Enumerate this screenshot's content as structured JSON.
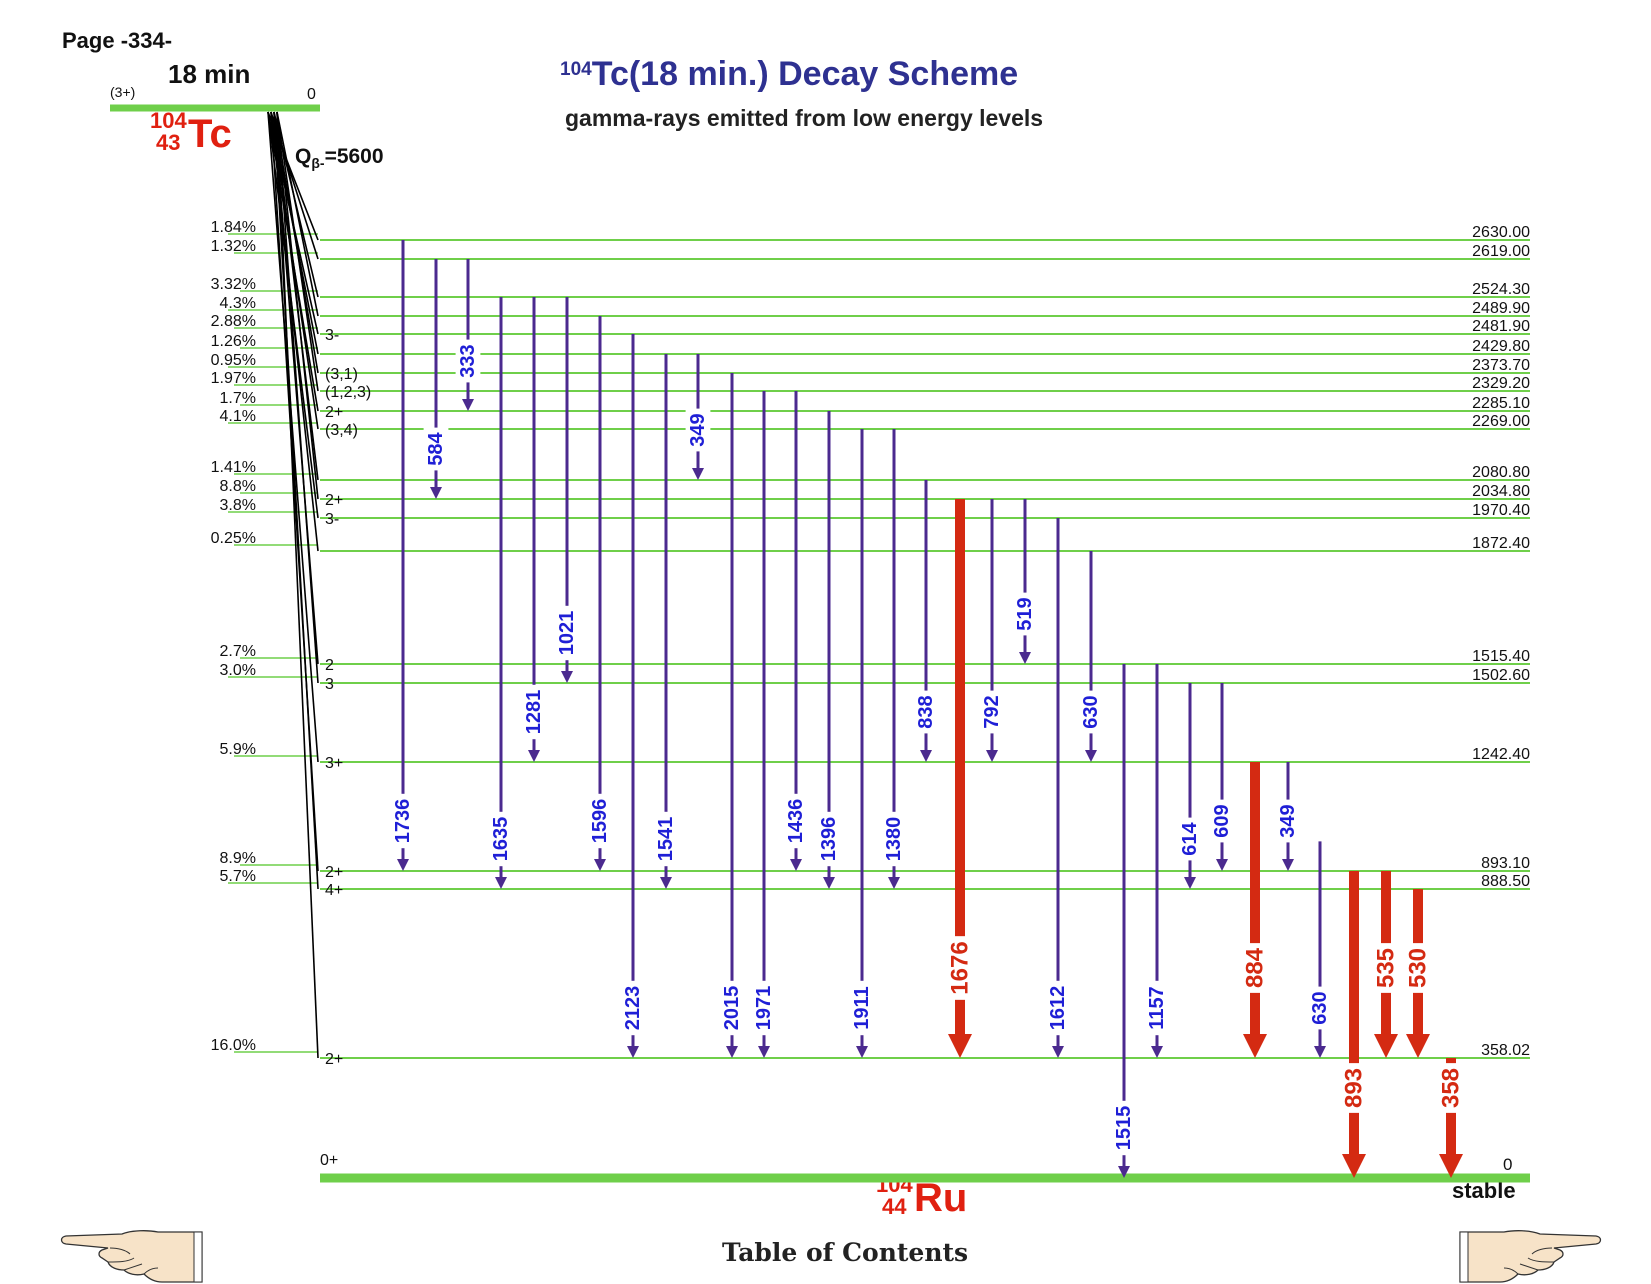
{
  "page_label": "Page -334-",
  "title": {
    "mass": "104",
    "text": "Tc(18 min.) Decay Scheme"
  },
  "subtitle": "gamma-rays emitted from low energy levels",
  "parent": {
    "half_life": "18 min",
    "spin": "(3+)",
    "energy": "0",
    "mass": "104",
    "z": "43",
    "symbol": "Tc",
    "q_beta_prefix": "Q",
    "q_beta_sub": "β-",
    "q_beta_suffix": "=5600"
  },
  "daughter": {
    "mass": "104",
    "z": "44",
    "symbol": "Ru",
    "spin": "0+",
    "energy": "0",
    "status": "stable"
  },
  "levels": [
    {
      "energy": "2630.00",
      "spin": "",
      "beta": "1.84%"
    },
    {
      "energy": "2619.00",
      "spin": "",
      "beta": "1.32%"
    },
    {
      "energy": "2524.30",
      "spin": "",
      "beta": "3.32%"
    },
    {
      "energy": "2489.90",
      "spin": "",
      "beta": "4.3%"
    },
    {
      "energy": "2481.90",
      "spin": "3-",
      "beta": "2.88%"
    },
    {
      "energy": "2429.80",
      "spin": "",
      "beta": "1.26%"
    },
    {
      "energy": "2373.70",
      "spin": "(3,1)",
      "beta": "0.95%"
    },
    {
      "energy": "2329.20",
      "spin": "(1,2,3)",
      "beta": "1.97%"
    },
    {
      "energy": "2285.10",
      "spin": "2+",
      "beta": "1.7%"
    },
    {
      "energy": "2269.00",
      "spin": "(3,4)",
      "beta": "4.1%"
    },
    {
      "energy": "2080.80",
      "spin": "",
      "beta": "1.41%"
    },
    {
      "energy": "2034.80",
      "spin": "2+",
      "beta": "8.8%"
    },
    {
      "energy": "1970.40",
      "spin": "3-",
      "beta": "3.8%"
    },
    {
      "energy": "1872.40",
      "spin": "",
      "beta": "0.25%"
    },
    {
      "energy": "1515.40",
      "spin": "2",
      "beta": "2.7%"
    },
    {
      "energy": "1502.60",
      "spin": "3",
      "beta": "3.0%"
    },
    {
      "energy": "1242.40",
      "spin": "3+",
      "beta": "5.9%"
    },
    {
      "energy": "893.10",
      "spin": "2+",
      "beta": "8.9%"
    },
    {
      "energy": "888.50",
      "spin": "4+",
      "beta": "5.7%"
    },
    {
      "energy": "358.02",
      "spin": "2+",
      "beta": "16.0%"
    }
  ],
  "gammas": [
    {
      "label": "1736",
      "from": "2630.00",
      "to": "893.10",
      "strong": false
    },
    {
      "label": "584",
      "from": "2619.00",
      "to": "2034.80",
      "strong": false
    },
    {
      "label": "333",
      "from": "2619.00",
      "to": "2285.10",
      "strong": false
    },
    {
      "label": "1635",
      "from": "2524.30",
      "to": "888.50",
      "strong": false
    },
    {
      "label": "1281",
      "from": "2524.30",
      "to": "1242.40",
      "strong": false
    },
    {
      "label": "1021",
      "from": "2524.30",
      "to": "1502.60",
      "strong": false
    },
    {
      "label": "1596",
      "from": "2489.90",
      "to": "893.10",
      "strong": false
    },
    {
      "label": "2123",
      "from": "2481.90",
      "to": "358.02",
      "strong": false
    },
    {
      "label": "1541",
      "from": "2429.80",
      "to": "888.50",
      "strong": false
    },
    {
      "label": "349",
      "from": "2429.80",
      "to": "2080.80",
      "strong": false
    },
    {
      "label": "2015",
      "from": "2373.70",
      "to": "358.02",
      "strong": false
    },
    {
      "label": "1971",
      "from": "2329.20",
      "to": "358.02",
      "strong": false
    },
    {
      "label": "1436",
      "from": "2329.20",
      "to": "893.10",
      "strong": false
    },
    {
      "label": "1396",
      "from": "2285.10",
      "to": "888.50",
      "strong": false
    },
    {
      "label": "1911",
      "from": "2269.00",
      "to": "358.02",
      "strong": false
    },
    {
      "label": "1380",
      "from": "2269.00",
      "to": "888.50",
      "strong": false
    },
    {
      "label": "838",
      "from": "2080.80",
      "to": "1242.40",
      "strong": false
    },
    {
      "label": "1676",
      "from": "2034.80",
      "to": "358.02",
      "strong": true
    },
    {
      "label": "792",
      "from": "2034.80",
      "to": "1242.40",
      "strong": false
    },
    {
      "label": "519",
      "from": "2034.80",
      "to": "1515.40",
      "strong": false
    },
    {
      "label": "1612",
      "from": "1970.40",
      "to": "358.02",
      "strong": false
    },
    {
      "label": "630",
      "from": "1872.40",
      "to": "1242.40",
      "strong": false
    },
    {
      "label": "1515",
      "from": "1515.40",
      "to": "0",
      "strong": false
    },
    {
      "label": "1157",
      "from": "1515.40",
      "to": "358.02",
      "strong": false
    },
    {
      "label": "614",
      "from": "1502.60",
      "to": "888.50",
      "strong": false
    },
    {
      "label": "609",
      "from": "1502.60",
      "to": "893.10",
      "strong": false
    },
    {
      "label": "884",
      "from": "1242.40",
      "to": "358.02",
      "strong": true
    },
    {
      "label": "349",
      "from": "1242.40",
      "to": "893.10",
      "strong": false
    },
    {
      "label": "630",
      "from": "988.00",
      "to": "358.02",
      "strong": false
    },
    {
      "label": "893",
      "from": "893.10",
      "to": "0",
      "strong": true
    },
    {
      "label": "535",
      "from": "893.10",
      "to": "358.02",
      "strong": true
    },
    {
      "label": "530",
      "from": "888.50",
      "to": "358.02",
      "strong": true
    },
    {
      "label": "358",
      "from": "358.02",
      "to": "0",
      "strong": true
    }
  ],
  "colors": {
    "level_line": "#6fcf4a",
    "weak_gamma": "#4b2a8f",
    "weak_label": "#1f1fd6",
    "strong_gamma": "#d42a12",
    "beta_feed": "#000000",
    "title": "#2e3191"
  },
  "navigation": {
    "toc_label": "Table of Contents",
    "prev_icon": "pointing-hand-left-icon",
    "next_icon": "pointing-hand-right-icon"
  }
}
